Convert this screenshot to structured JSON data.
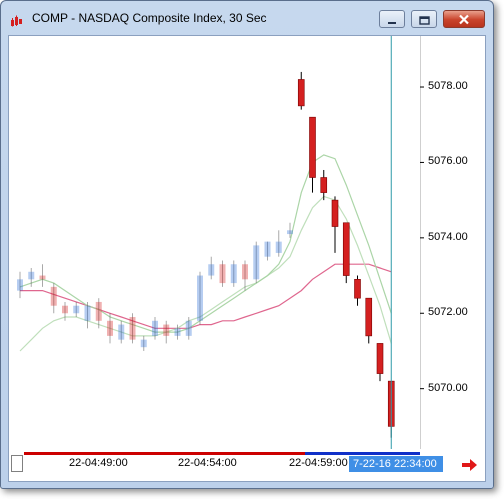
{
  "window": {
    "title": "COMP - NASDAQ Composite Index, 30 Sec",
    "icon": "chart-app-icon",
    "controls": [
      "minimize-icon",
      "maximize-icon",
      "close-icon"
    ]
  },
  "colors": {
    "bearish": "#d42020",
    "bullish": "#2f6fd6",
    "crosshair": "#2e9aa8",
    "ma_fast": "#a6d3a2",
    "ma_slow": "#d94b7a",
    "time_badge": "#3f8fe6",
    "bottom_bar_red": "#cc0000",
    "bottom_bar_blue": "#1030c8"
  },
  "axis": {
    "y_ticks": [
      "5078.00",
      "5076.00",
      "5074.00",
      "5072.00",
      "5070.00"
    ],
    "x_ticks": [
      "22-04:49:00",
      "22-04:54:00",
      "22-04:59:00"
    ],
    "cursor_time": "7-22-16 22:34:00"
  },
  "chart_data": {
    "type": "candlestick",
    "symbol": "COMP",
    "interval": "30 Sec",
    "ylim": [
      5068.4,
      5079.3
    ],
    "y_ticks": [
      5078,
      5076,
      5074,
      5072,
      5070
    ],
    "candles": [
      {
        "o": 5072.6,
        "c": 5072.9,
        "h": 5073.1,
        "l": 5072.4,
        "faded": true
      },
      {
        "o": 5072.9,
        "c": 5073.1,
        "h": 5073.2,
        "l": 5072.7,
        "faded": true
      },
      {
        "o": 5073.0,
        "c": 5072.9,
        "h": 5073.3,
        "l": 5072.7,
        "faded": true
      },
      {
        "o": 5072.7,
        "c": 5072.2,
        "h": 5072.8,
        "l": 5072.0,
        "faded": true
      },
      {
        "o": 5072.2,
        "c": 5072.0,
        "h": 5072.3,
        "l": 5071.8,
        "faded": true
      },
      {
        "o": 5072.0,
        "c": 5072.2,
        "h": 5072.3,
        "l": 5071.9,
        "faded": true
      },
      {
        "o": 5071.8,
        "c": 5072.2,
        "h": 5072.3,
        "l": 5071.6,
        "faded": true
      },
      {
        "o": 5072.3,
        "c": 5071.8,
        "h": 5072.4,
        "l": 5071.6,
        "faded": true
      },
      {
        "o": 5071.8,
        "c": 5071.4,
        "h": 5072.0,
        "l": 5071.2,
        "faded": true
      },
      {
        "o": 5071.3,
        "c": 5071.7,
        "h": 5071.8,
        "l": 5071.2,
        "faded": true
      },
      {
        "o": 5071.9,
        "c": 5071.3,
        "h": 5072.0,
        "l": 5071.2,
        "faded": true
      },
      {
        "o": 5071.1,
        "c": 5071.3,
        "h": 5071.4,
        "l": 5071.0,
        "faded": true
      },
      {
        "o": 5071.4,
        "c": 5071.8,
        "h": 5071.9,
        "l": 5071.3,
        "faded": true
      },
      {
        "o": 5071.7,
        "c": 5071.4,
        "h": 5071.8,
        "l": 5071.2,
        "faded": true
      },
      {
        "o": 5071.4,
        "c": 5071.6,
        "h": 5071.7,
        "l": 5071.3,
        "faded": true
      },
      {
        "o": 5071.4,
        "c": 5071.8,
        "h": 5071.9,
        "l": 5071.3,
        "faded": true
      },
      {
        "o": 5071.8,
        "c": 5073.0,
        "h": 5073.1,
        "l": 5071.7,
        "faded": true
      },
      {
        "o": 5073.0,
        "c": 5073.3,
        "h": 5073.5,
        "l": 5072.9,
        "faded": true
      },
      {
        "o": 5073.3,
        "c": 5072.8,
        "h": 5073.4,
        "l": 5072.7,
        "faded": true
      },
      {
        "o": 5072.8,
        "c": 5073.3,
        "h": 5073.4,
        "l": 5072.7,
        "faded": true
      },
      {
        "o": 5073.3,
        "c": 5072.9,
        "h": 5073.4,
        "l": 5072.6,
        "faded": true
      },
      {
        "o": 5072.9,
        "c": 5073.8,
        "h": 5073.9,
        "l": 5072.8,
        "faded": true
      },
      {
        "o": 5073.5,
        "c": 5073.9,
        "h": 5073.9,
        "l": 5073.4,
        "faded": true
      },
      {
        "o": 5073.6,
        "c": 5073.9,
        "h": 5074.2,
        "l": 5073.5,
        "faded": true
      },
      {
        "o": 5074.1,
        "c": 5074.2,
        "h": 5074.4,
        "l": 5074.0,
        "faded": true
      },
      {
        "o": 5078.2,
        "c": 5077.5,
        "h": 5078.4,
        "l": 5077.4,
        "faded": false
      },
      {
        "o": 5077.2,
        "c": 5075.6,
        "h": 5077.2,
        "l": 5075.2,
        "faded": false
      },
      {
        "o": 5075.6,
        "c": 5075.2,
        "h": 5075.8,
        "l": 5075.0,
        "faded": false
      },
      {
        "o": 5075.0,
        "c": 5074.3,
        "h": 5075.1,
        "l": 5073.6,
        "faded": false
      },
      {
        "o": 5074.4,
        "c": 5073.0,
        "h": 5074.4,
        "l": 5072.8,
        "faded": false
      },
      {
        "o": 5072.9,
        "c": 5072.4,
        "h": 5073.0,
        "l": 5072.2,
        "faded": false
      },
      {
        "o": 5072.4,
        "c": 5071.4,
        "h": 5072.4,
        "l": 5071.2,
        "faded": false
      },
      {
        "o": 5071.2,
        "c": 5070.4,
        "h": 5071.2,
        "l": 5070.2,
        "faded": false
      },
      {
        "o": 5070.2,
        "c": 5069.0,
        "h": 5070.2,
        "l": 5068.7,
        "faded": false
      }
    ],
    "ma_fast": {
      "color": "#a6d3a2",
      "values": [
        5072.7,
        5072.8,
        5072.9,
        5072.8,
        5072.6,
        5072.4,
        5072.2,
        5072.1,
        5071.9,
        5071.8,
        5071.7,
        5071.6,
        5071.5,
        5071.5,
        5071.5,
        5071.6,
        5071.8,
        5072.0,
        5072.2,
        5072.4,
        5072.6,
        5072.8,
        5073.0,
        5073.3,
        5073.9,
        5075.2,
        5076.0,
        5076.2,
        5076.1,
        5075.4,
        5074.6,
        5073.8,
        5072.9,
        5072.0
      ]
    },
    "ma_mid": {
      "color": "#b8dcb4",
      "values": [
        5071.0,
        5071.3,
        5071.6,
        5071.8,
        5071.9,
        5071.9,
        5071.8,
        5071.7,
        5071.6,
        5071.5,
        5071.4,
        5071.4,
        5071.4,
        5071.5,
        5071.6,
        5071.8,
        5071.9,
        5072.1,
        5072.3,
        5072.5,
        5072.7,
        5072.8,
        5073.0,
        5073.2,
        5073.5,
        5074.2,
        5074.8,
        5075.1,
        5075.0,
        5074.5,
        5073.8,
        5073.0,
        5072.2,
        5071.2
      ]
    },
    "ma_slow": {
      "color": "#d94b7a",
      "values": [
        5072.6,
        5072.6,
        5072.6,
        5072.5,
        5072.4,
        5072.3,
        5072.2,
        5072.1,
        5072.0,
        5071.9,
        5071.8,
        5071.7,
        5071.6,
        5071.6,
        5071.6,
        5071.6,
        5071.7,
        5071.7,
        5071.8,
        5071.8,
        5071.9,
        5072.0,
        5072.1,
        5072.2,
        5072.4,
        5072.6,
        5072.9,
        5073.1,
        5073.3,
        5073.3,
        5073.3,
        5073.3,
        5073.2,
        5073.1
      ]
    }
  }
}
